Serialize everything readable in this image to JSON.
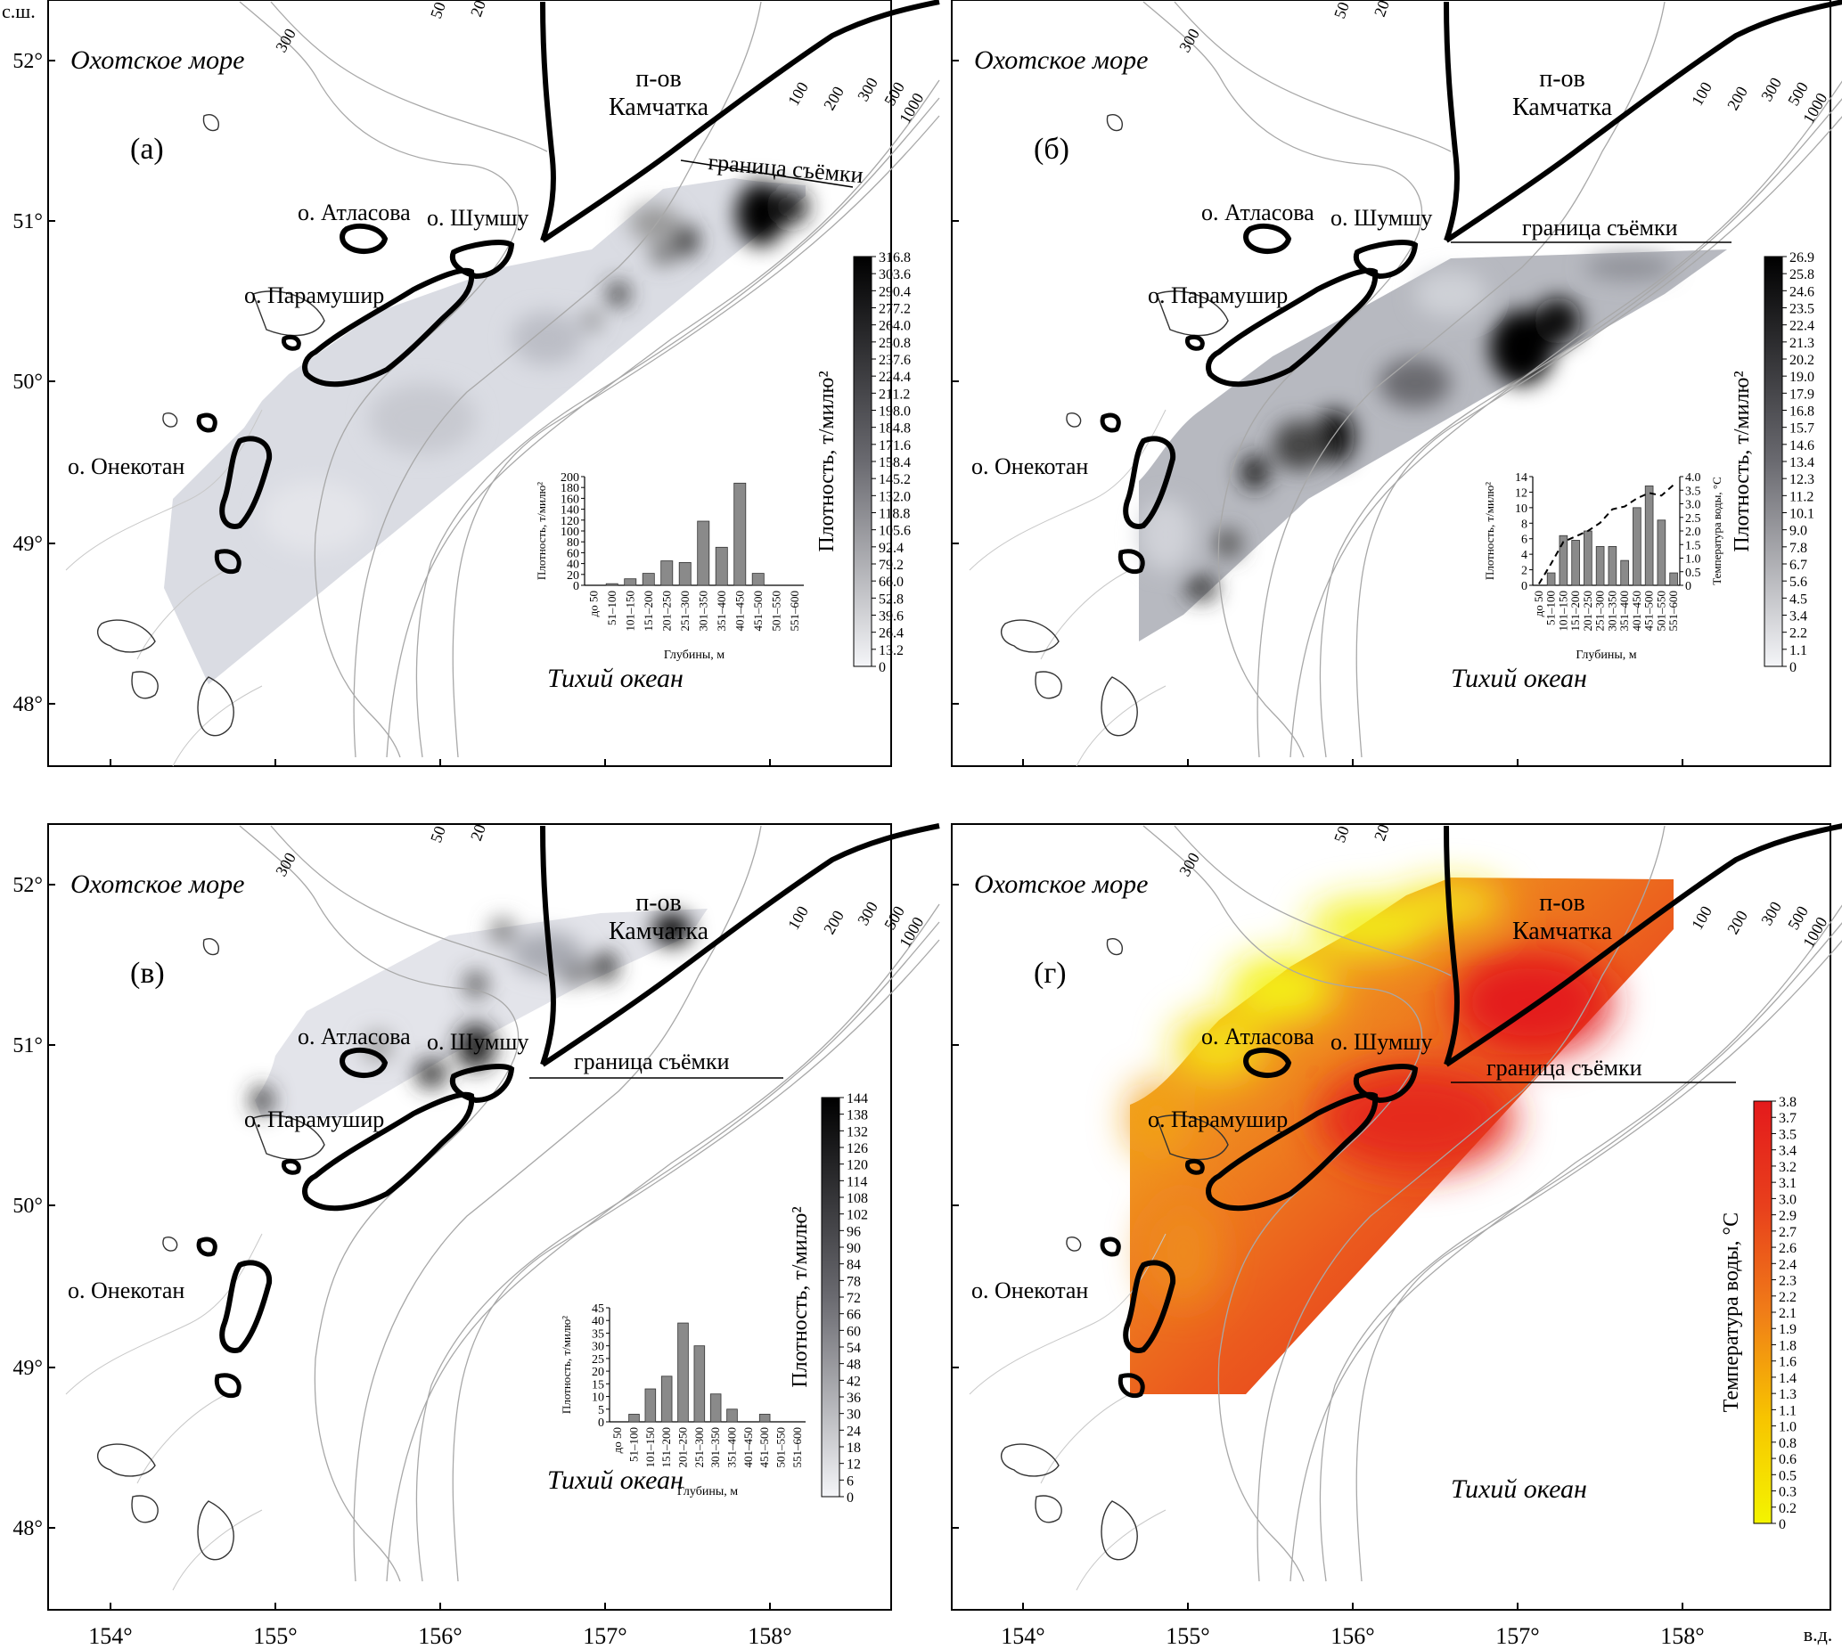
{
  "labels": {
    "lat_unit": "с.ш.",
    "lon_unit": "в.д.",
    "sea": "Охотское море",
    "ocean": "Тихий океан",
    "peninsula": "п-ов Камчатка",
    "atlasova": "о. Атласова",
    "shumshu": "о. Шумшу",
    "paramushir": "о. Парамушир",
    "onekotan": "о. Онекотан",
    "survey_border": "граница съёмки",
    "hist_xlabel": "Глубины, м",
    "hist_ylabel": "Плотность, т/милю²",
    "hist_temp_label": "Температура воды, °C",
    "cbar_density": "Плотность, т/милю²",
    "cbar_temp": "Температура воды, °C"
  },
  "axes": {
    "lat_ticks": [
      "52°",
      "51°",
      "50°",
      "49°",
      "48°"
    ],
    "lon_ticks": [
      "154°",
      "155°",
      "156°",
      "157°",
      "158°"
    ]
  },
  "isobath_labels": [
    "300",
    "50",
    "20",
    "100",
    "200",
    "300",
    "500",
    "1000"
  ],
  "depth_bins": [
    "до 50",
    "51–100",
    "101–150",
    "151–200",
    "201–250",
    "251–300",
    "301–350",
    "351–400",
    "401–450",
    "451–500",
    "501–550",
    "551–600"
  ],
  "panels": [
    {
      "id": "a",
      "letter": "(а)",
      "type": "density",
      "colorbar_ticks": [
        "316.8",
        "303.6",
        "290.4",
        "277.2",
        "264.0",
        "250.8",
        "237.6",
        "224.4",
        "211.2",
        "198.0",
        "184.8",
        "171.6",
        "158.4",
        "145.2",
        "132.0",
        "118.8",
        "105.6",
        "92.4",
        "79.2",
        "66.0",
        "52.8",
        "39.6",
        "26.4",
        "13.2",
        "0"
      ],
      "hist": {
        "yticks": [
          "200",
          "180",
          "160",
          "140",
          "120",
          "100",
          "80",
          "60",
          "40",
          "20",
          "0"
        ],
        "ymax": 200,
        "values": [
          0,
          3,
          12,
          22,
          45,
          42,
          118,
          70,
          188,
          22,
          0,
          0
        ]
      }
    },
    {
      "id": "b",
      "letter": "(б)",
      "type": "density",
      "colorbar_ticks": [
        "26.9",
        "25.8",
        "24.6",
        "23.5",
        "22.4",
        "21.3",
        "20.2",
        "19.0",
        "17.9",
        "16.8",
        "15.7",
        "14.6",
        "13.4",
        "12.3",
        "11.2",
        "10.1",
        "9.0",
        "7.8",
        "6.7",
        "5.6",
        "4.5",
        "3.4",
        "2.2",
        "1.1",
        "0"
      ],
      "hist": {
        "yticks": [
          "14",
          "12",
          "10",
          "8",
          "6",
          "4",
          "2",
          "0"
        ],
        "ymax": 14,
        "temp_ticks": [
          "4.0",
          "3.5",
          "3.0",
          "2.5",
          "2.0",
          "1.5",
          "1.0",
          "0.5",
          "0"
        ],
        "temp_max": 4.0,
        "values": [
          0,
          1.6,
          6.4,
          5.8,
          7.0,
          5.0,
          5.0,
          3.2,
          10.0,
          12.8,
          8.4,
          1.6
        ],
        "temperature": [
          0.05,
          0.8,
          1.6,
          1.8,
          2.0,
          2.3,
          2.8,
          2.9,
          3.2,
          3.4,
          3.3,
          3.7
        ]
      }
    },
    {
      "id": "v",
      "letter": "(в)",
      "type": "density",
      "colorbar_ticks": [
        "144",
        "138",
        "132",
        "126",
        "120",
        "114",
        "108",
        "102",
        "96",
        "90",
        "84",
        "78",
        "72",
        "66",
        "60",
        "54",
        "48",
        "42",
        "36",
        "30",
        "24",
        "18",
        "12",
        "6",
        "0"
      ],
      "hist": {
        "yticks": [
          "45",
          "40",
          "35",
          "30",
          "25",
          "20",
          "15",
          "10",
          "5",
          "0"
        ],
        "ymax": 45,
        "values": [
          0,
          3,
          13,
          18,
          39,
          30,
          11,
          5,
          0,
          3,
          0,
          0
        ]
      }
    },
    {
      "id": "g",
      "letter": "(г)",
      "type": "temperature",
      "colorbar_ticks": [
        "3.8",
        "3.7",
        "3.5",
        "3.4",
        "3.2",
        "3.1",
        "3.0",
        "2.9",
        "2.7",
        "2.6",
        "2.4",
        "2.3",
        "2.2",
        "2.1",
        "1.9",
        "1.8",
        "1.6",
        "1.4",
        "1.3",
        "1.1",
        "1.0",
        "0.8",
        "0.6",
        "0.5",
        "0.3",
        "0.2",
        "0"
      ]
    }
  ],
  "colors": {
    "grey_low": "#f4f5f8",
    "grey_high": "#000000",
    "temp_low": "#f4f400",
    "temp_mid": "#f07d18",
    "temp_high": "#e41a1c",
    "bar_fill": "#8a8a8a"
  }
}
